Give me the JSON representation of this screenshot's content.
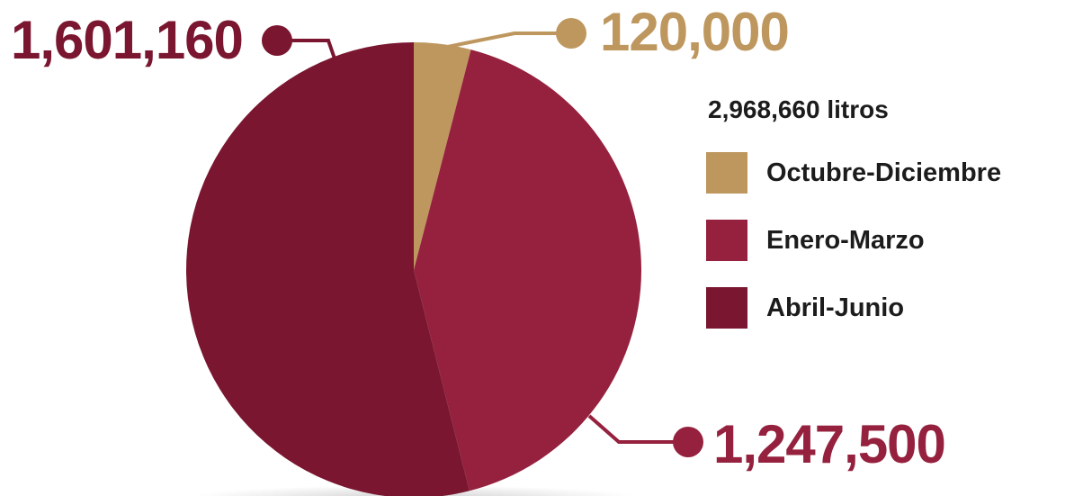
{
  "chart_data": {
    "type": "pie",
    "title": "2,968,660 litros",
    "slices": [
      {
        "label": "Octubre-Diciembre",
        "value": 120000,
        "value_label": "120,000",
        "color": "#be975e"
      },
      {
        "label": "Enero-Marzo",
        "value": 1247500,
        "value_label": "1,247,500",
        "color": "#95213e"
      },
      {
        "label": "Abril-Junio",
        "value": 1601160,
        "value_label": "1,601,160",
        "color": "#7a1630"
      }
    ],
    "legend_position": "right"
  }
}
